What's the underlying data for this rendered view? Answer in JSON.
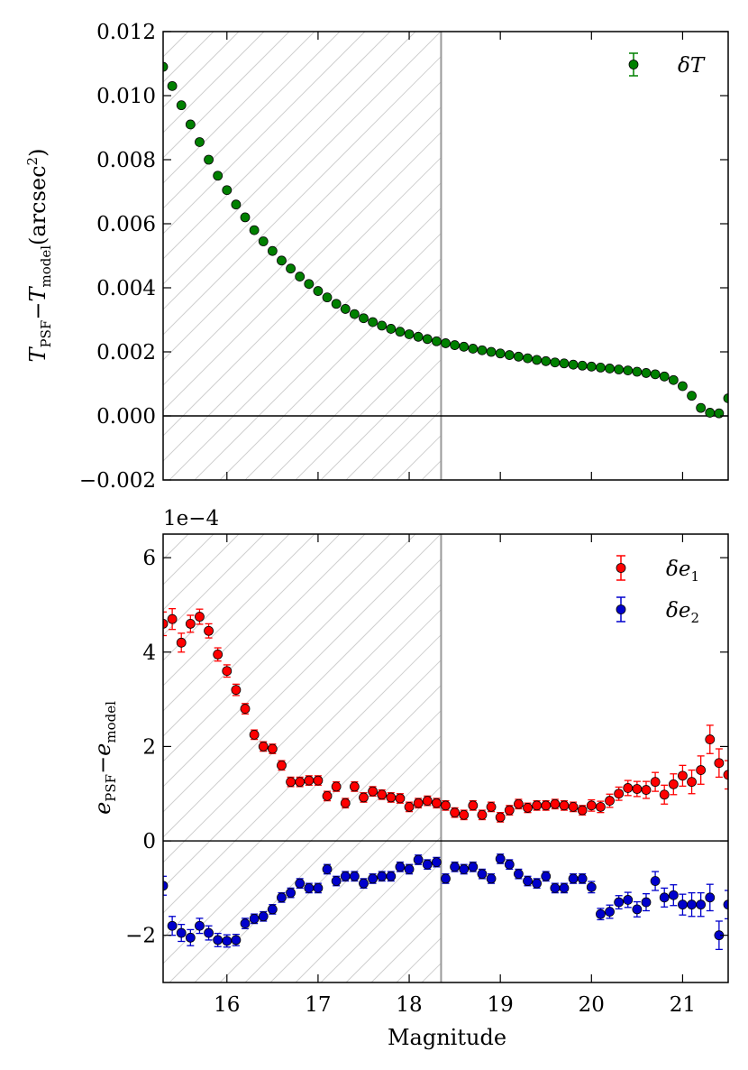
{
  "chart_data": [
    {
      "type": "scatter",
      "panel": "top",
      "ylabel_main": "T",
      "ylabel_sub1": "PSF",
      "ylabel_minus": "−",
      "ylabel_sub2": "model",
      "ylabel_unit": "(arcsec",
      "ylabel_unit_exp": "2",
      "ylabel_unit_close": ")",
      "xlim": [
        15.3,
        21.5
      ],
      "ylim": [
        -0.002,
        0.012
      ],
      "yticks": [
        -0.002,
        0.0,
        0.002,
        0.004,
        0.006,
        0.008,
        0.01,
        0.012
      ],
      "ytick_labels": [
        "−0.002",
        "0.000",
        "0.002",
        "0.004",
        "0.006",
        "0.008",
        "0.010",
        "0.012"
      ],
      "hatched_region_x": [
        15.3,
        18.35
      ],
      "vline_x": 18.35,
      "hline_y": 0.0,
      "legend_position": "top-right",
      "series": [
        {
          "name": "δT",
          "legend_label": "δT",
          "color": "#008000",
          "x": [
            15.3,
            15.4,
            15.5,
            15.6,
            15.7,
            15.8,
            15.9,
            16.0,
            16.1,
            16.2,
            16.3,
            16.4,
            16.5,
            16.6,
            16.7,
            16.8,
            16.9,
            17.0,
            17.1,
            17.2,
            17.3,
            17.4,
            17.5,
            17.6,
            17.7,
            17.8,
            17.9,
            18.0,
            18.1,
            18.2,
            18.3,
            18.4,
            18.5,
            18.6,
            18.7,
            18.8,
            18.9,
            19.0,
            19.1,
            19.2,
            19.3,
            19.4,
            19.5,
            19.6,
            19.7,
            19.8,
            19.9,
            20.0,
            20.1,
            20.2,
            20.3,
            20.4,
            20.5,
            20.6,
            20.7,
            20.8,
            20.9,
            21.0,
            21.1,
            21.2,
            21.3,
            21.4,
            21.5
          ],
          "y": [
            0.0109,
            0.0103,
            0.0097,
            0.0091,
            0.00855,
            0.008,
            0.0075,
            0.00705,
            0.0066,
            0.0062,
            0.0058,
            0.00545,
            0.00515,
            0.00485,
            0.0046,
            0.00435,
            0.00412,
            0.0039,
            0.0037,
            0.0035,
            0.00334,
            0.00318,
            0.00305,
            0.00293,
            0.00282,
            0.00272,
            0.00263,
            0.00255,
            0.00247,
            0.0024,
            0.00233,
            0.00227,
            0.00221,
            0.00216,
            0.0021,
            0.00205,
            0.002,
            0.00195,
            0.0019,
            0.00185,
            0.0018,
            0.00175,
            0.00171,
            0.00167,
            0.00164,
            0.0016,
            0.00157,
            0.00154,
            0.00151,
            0.00148,
            0.00145,
            0.00142,
            0.00138,
            0.00134,
            0.0013,
            0.00123,
            0.00112,
            0.00093,
            0.00063,
            0.00025,
            0.0001,
            8e-05,
            0.00055
          ]
        }
      ]
    },
    {
      "type": "scatter",
      "panel": "bottom",
      "scale_label": "1e−4",
      "xlabel": "Magnitude",
      "ylabel_main": "e",
      "ylabel_sub1": "PSF",
      "ylabel_minus": "−",
      "ylabel_sub2": "model",
      "xlim": [
        15.3,
        21.5
      ],
      "ylim": [
        -3,
        6.5
      ],
      "xticks": [
        16,
        17,
        18,
        19,
        20,
        21
      ],
      "xtick_labels": [
        "16",
        "17",
        "18",
        "19",
        "20",
        "21"
      ],
      "yticks": [
        -2,
        0,
        2,
        4,
        6
      ],
      "ytick_labels": [
        "−2",
        "0",
        "2",
        "4",
        "6"
      ],
      "hatched_region_x": [
        15.3,
        18.35
      ],
      "vline_x": 18.35,
      "hline_y": 0,
      "legend_position": "top-right",
      "series": [
        {
          "name": "δe1",
          "legend_label": "δe",
          "legend_sub": "1",
          "color": "#ff0000",
          "x": [
            15.3,
            15.4,
            15.5,
            15.6,
            15.7,
            15.8,
            15.9,
            16.0,
            16.1,
            16.2,
            16.3,
            16.4,
            16.5,
            16.6,
            16.7,
            16.8,
            16.9,
            17.0,
            17.1,
            17.2,
            17.3,
            17.4,
            17.5,
            17.6,
            17.7,
            17.8,
            17.9,
            18.0,
            18.1,
            18.2,
            18.3,
            18.4,
            18.5,
            18.6,
            18.7,
            18.8,
            18.9,
            19.0,
            19.1,
            19.2,
            19.3,
            19.4,
            19.5,
            19.6,
            19.7,
            19.8,
            19.9,
            20.0,
            20.1,
            20.2,
            20.3,
            20.4,
            20.5,
            20.6,
            20.7,
            20.8,
            20.9,
            21.0,
            21.1,
            21.2,
            21.3,
            21.4,
            21.5
          ],
          "y": [
            4.6,
            4.7,
            4.2,
            4.6,
            4.75,
            4.45,
            3.95,
            3.6,
            3.2,
            2.8,
            2.25,
            2.0,
            1.95,
            1.6,
            1.25,
            1.25,
            1.28,
            1.28,
            0.95,
            1.15,
            0.8,
            1.15,
            0.92,
            1.05,
            0.98,
            0.92,
            0.9,
            0.72,
            0.8,
            0.85,
            0.8,
            0.75,
            0.6,
            0.55,
            0.75,
            0.55,
            0.72,
            0.5,
            0.65,
            0.78,
            0.7,
            0.75,
            0.75,
            0.78,
            0.75,
            0.72,
            0.65,
            0.75,
            0.72,
            0.85,
            1.0,
            1.12,
            1.1,
            1.08,
            1.25,
            0.98,
            1.2,
            1.38,
            1.25,
            1.5,
            2.15,
            1.65,
            1.4
          ],
          "yerr": [
            0.25,
            0.22,
            0.2,
            0.18,
            0.16,
            0.15,
            0.14,
            0.13,
            0.12,
            0.11,
            0.1,
            0.1,
            0.1,
            0.1,
            0.1,
            0.1,
            0.1,
            0.1,
            0.1,
            0.1,
            0.1,
            0.1,
            0.1,
            0.1,
            0.1,
            0.1,
            0.1,
            0.1,
            0.1,
            0.1,
            0.1,
            0.1,
            0.1,
            0.1,
            0.1,
            0.1,
            0.1,
            0.1,
            0.1,
            0.1,
            0.1,
            0.1,
            0.1,
            0.1,
            0.1,
            0.1,
            0.1,
            0.12,
            0.12,
            0.14,
            0.14,
            0.16,
            0.16,
            0.18,
            0.2,
            0.2,
            0.22,
            0.22,
            0.25,
            0.3,
            0.3,
            0.3,
            0.3
          ]
        },
        {
          "name": "δe2",
          "legend_label": "δe",
          "legend_sub": "2",
          "color": "#0000cc",
          "x": [
            15.3,
            15.4,
            15.5,
            15.6,
            15.7,
            15.8,
            15.9,
            16.0,
            16.1,
            16.2,
            16.3,
            16.4,
            16.5,
            16.6,
            16.7,
            16.8,
            16.9,
            17.0,
            17.1,
            17.2,
            17.3,
            17.4,
            17.5,
            17.6,
            17.7,
            17.8,
            17.9,
            18.0,
            18.1,
            18.2,
            18.3,
            18.4,
            18.5,
            18.6,
            18.7,
            18.8,
            18.9,
            19.0,
            19.1,
            19.2,
            19.3,
            19.4,
            19.5,
            19.6,
            19.7,
            19.8,
            19.9,
            20.0,
            20.1,
            20.2,
            20.3,
            20.4,
            20.5,
            20.6,
            20.7,
            20.8,
            20.9,
            21.0,
            21.1,
            21.2,
            21.3,
            21.4,
            21.5
          ],
          "y": [
            -0.95,
            -1.8,
            -1.95,
            -2.05,
            -1.8,
            -1.95,
            -2.1,
            -2.12,
            -2.1,
            -1.75,
            -1.65,
            -1.6,
            -1.45,
            -1.2,
            -1.1,
            -0.9,
            -1.0,
            -1.0,
            -0.6,
            -0.85,
            -0.75,
            -0.75,
            -0.9,
            -0.8,
            -0.75,
            -0.75,
            -0.55,
            -0.6,
            -0.4,
            -0.5,
            -0.45,
            -0.8,
            -0.55,
            -0.6,
            -0.55,
            -0.7,
            -0.8,
            -0.38,
            -0.5,
            -0.7,
            -0.85,
            -0.9,
            -0.75,
            -1.0,
            -1.0,
            -0.8,
            -0.8,
            -0.98,
            -1.55,
            -1.5,
            -1.3,
            -1.25,
            -1.45,
            -1.3,
            -0.85,
            -1.2,
            -1.15,
            -1.35,
            -1.35,
            -1.35,
            -1.2,
            -2.0,
            -1.35
          ],
          "yerr": [
            0.2,
            0.2,
            0.18,
            0.17,
            0.16,
            0.15,
            0.14,
            0.13,
            0.12,
            0.11,
            0.1,
            0.1,
            0.1,
            0.1,
            0.1,
            0.1,
            0.1,
            0.1,
            0.1,
            0.1,
            0.1,
            0.1,
            0.1,
            0.1,
            0.1,
            0.1,
            0.1,
            0.1,
            0.1,
            0.1,
            0.1,
            0.1,
            0.1,
            0.1,
            0.1,
            0.1,
            0.1,
            0.1,
            0.1,
            0.1,
            0.1,
            0.1,
            0.1,
            0.1,
            0.1,
            0.1,
            0.1,
            0.12,
            0.12,
            0.14,
            0.14,
            0.16,
            0.16,
            0.18,
            0.2,
            0.2,
            0.22,
            0.22,
            0.25,
            0.25,
            0.28,
            0.3,
            0.3
          ]
        }
      ]
    }
  ]
}
